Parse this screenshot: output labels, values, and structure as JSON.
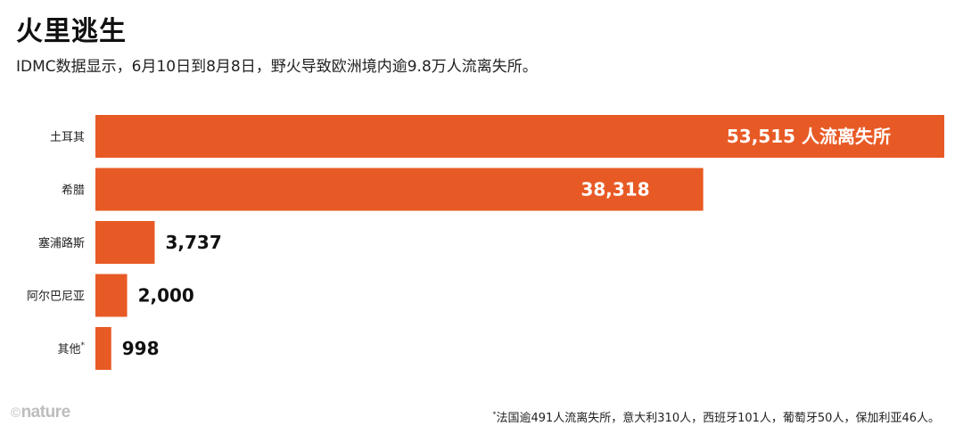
{
  "title": "火里逃生",
  "subtitle": "IDMC数据显示，6月10日到8月8日，野火导致欧洲境内逾9.8万人流离失所。",
  "footnote": "法国逾491人流离失所，意大利310人，西班牙101人，葡萄牙50人，保加利亚46人。",
  "footnote_marker": "*",
  "logo": {
    "symbol": "©",
    "text": "nature"
  },
  "chart_data": {
    "type": "bar",
    "orientation": "horizontal",
    "categories": [
      "土耳其",
      "希腊",
      "塞浦路斯",
      "阿尔巴尼亚",
      "其他"
    ],
    "values": [
      53515,
      38318,
      3737,
      2000,
      998
    ],
    "data_labels": [
      "53,515 人流离失所",
      "38,318",
      "3,737",
      "2,000",
      "998"
    ],
    "category_markers": [
      "",
      "",
      "",
      "",
      "*"
    ],
    "xlim": [
      0,
      53515
    ],
    "grid": false,
    "bar_color": "#e85a25"
  }
}
